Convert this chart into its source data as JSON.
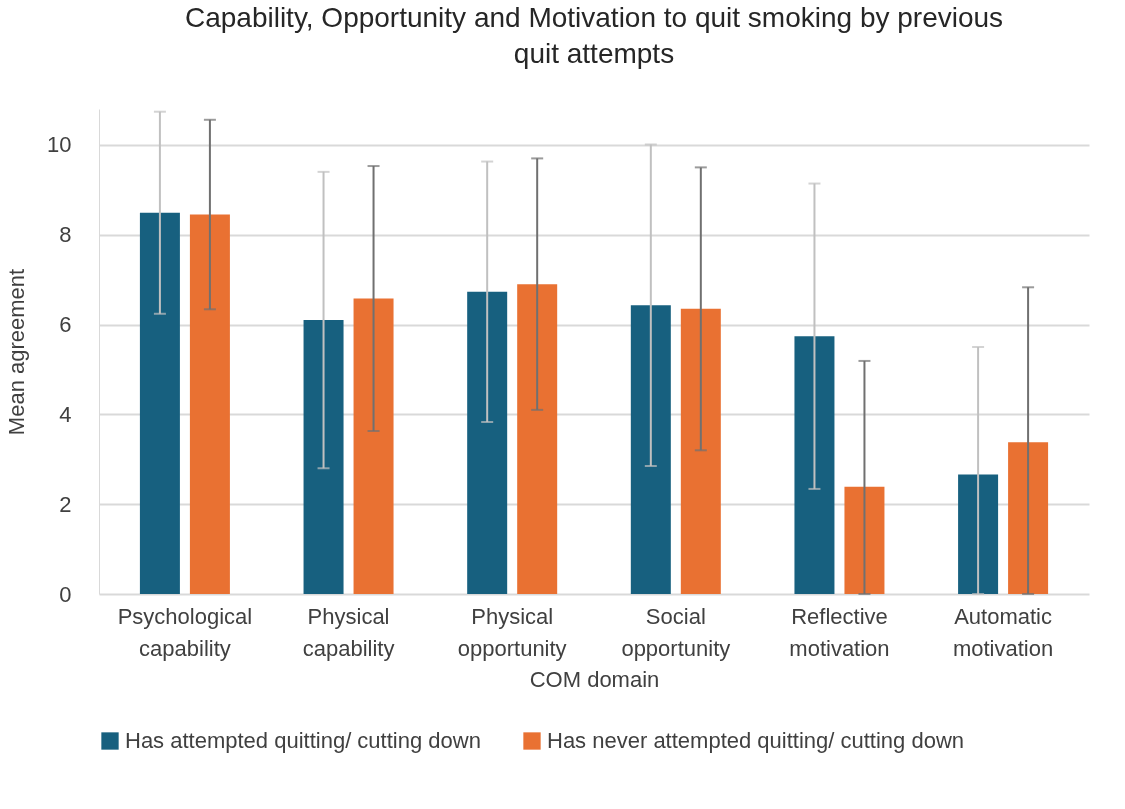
{
  "chart_data": {
    "type": "bar",
    "title": "Capability, Opportunity and Motivation to quit smoking by previous quit attempts",
    "xlabel": "COM domain",
    "ylabel": "Mean agreement",
    "categories": [
      "Psychological capability",
      "Physical capability",
      "Physical opportunity",
      "Social opportunity",
      "Reflective motivation",
      "Automatic motivation"
    ],
    "series": [
      {
        "name": "Has attempted quitting/ cutting down",
        "color": "#17607f",
        "values": [
          8.49,
          6.1,
          6.73,
          6.43,
          5.74,
          2.66
        ],
        "errors": [
          2.25,
          3.3,
          2.9,
          3.58,
          3.4,
          [
            0,
            5.5
          ]
        ]
      },
      {
        "name": "Has never attempted quitting/ cutting down",
        "color": "#e97132",
        "values": [
          8.45,
          6.58,
          6.9,
          6.35,
          2.39,
          3.38
        ],
        "errors": [
          2.11,
          2.95,
          2.8,
          3.15,
          [
            0,
            5.19
          ],
          [
            0,
            6.83
          ]
        ]
      }
    ],
    "ylim": [
      0,
      10.8
    ],
    "yticks": [
      0,
      2,
      4,
      6,
      8,
      10
    ],
    "grid": "y",
    "legend": "bottom"
  }
}
